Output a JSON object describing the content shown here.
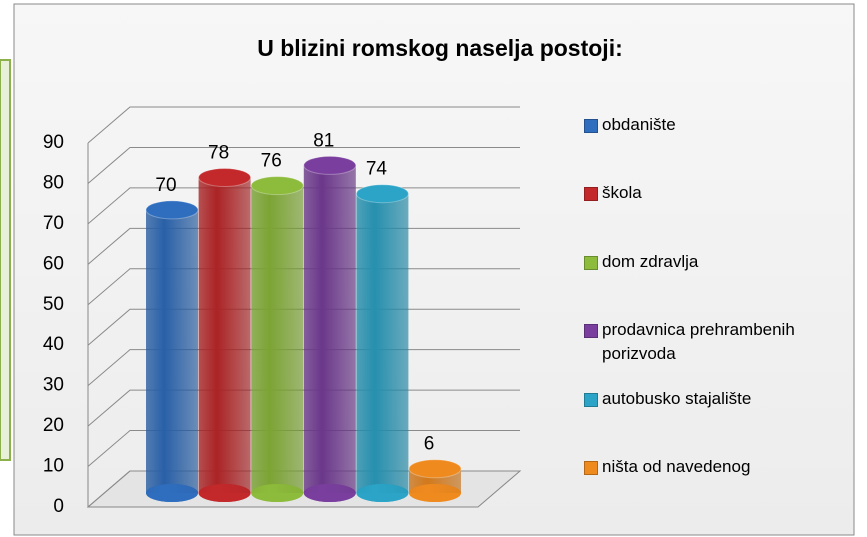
{
  "chart_data": {
    "type": "bar",
    "title": "U blizini romskog naselja postoji:",
    "series": [
      {
        "name": "obdanište",
        "color": "#2f6ebf",
        "values": [
          70
        ]
      },
      {
        "name": "škola",
        "color": "#c3292b",
        "values": [
          78
        ]
      },
      {
        "name": "dom zdravlja",
        "color": "#8dbb3b",
        "values": [
          76
        ]
      },
      {
        "name": "prodavnica prehrambenih porizvoda",
        "color": "#7a3f9e",
        "values": [
          81
        ]
      },
      {
        "name": "autobusko stajalište",
        "color": "#2ba4c7",
        "values": [
          74
        ]
      },
      {
        "name": "ništa od navedenog",
        "color": "#ef8a1f",
        "values": [
          6
        ]
      }
    ],
    "ylim": [
      0,
      90
    ],
    "yticks": [
      0,
      10,
      20,
      30,
      40,
      50,
      60,
      70,
      80,
      90
    ],
    "grid": true,
    "legend": "right"
  }
}
